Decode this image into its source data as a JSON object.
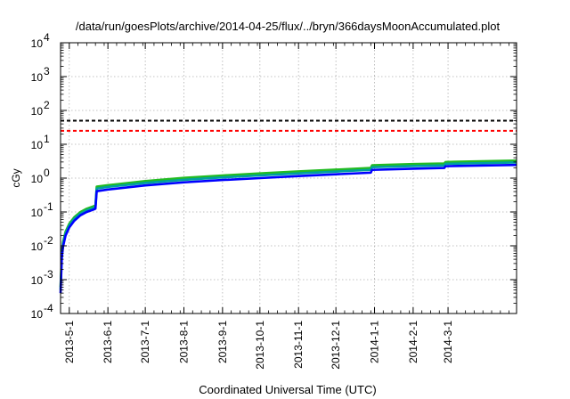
{
  "chart_data": {
    "type": "line",
    "title": "/data/run/goesPlots/archive/2014-04-25/flux/../bryn/366daysMoonAccumulated.plot",
    "xlabel": "Coordinated Universal Time (UTC)",
    "ylabel": "cGy",
    "x_range": [
      "2013-04-24",
      "2014-04-25"
    ],
    "ylim": [
      0.0001,
      10000
    ],
    "y_scale": "log",
    "grid": true,
    "x_ticks": [
      {
        "date": "2013-05-01",
        "label": "2013-5-1"
      },
      {
        "date": "2013-06-01",
        "label": "2013-6-1"
      },
      {
        "date": "2013-07-01",
        "label": "2013-7-1"
      },
      {
        "date": "2013-08-01",
        "label": "2013-8-1"
      },
      {
        "date": "2013-09-01",
        "label": "2013-9-1"
      },
      {
        "date": "2013-10-01",
        "label": "2013-10-1"
      },
      {
        "date": "2013-11-01",
        "label": "2013-11-1"
      },
      {
        "date": "2013-12-01",
        "label": "2013-12-1"
      },
      {
        "date": "2014-01-01",
        "label": "2014-1-1"
      },
      {
        "date": "2014-02-01",
        "label": "2014-2-1"
      },
      {
        "date": "2014-03-01",
        "label": "2014-3-1"
      }
    ],
    "y_ticks": [
      {
        "value": 0.0001,
        "base": "10",
        "exp": "-4"
      },
      {
        "value": 0.001,
        "base": "10",
        "exp": "-3"
      },
      {
        "value": 0.01,
        "base": "10",
        "exp": "-2"
      },
      {
        "value": 0.1,
        "base": "10",
        "exp": "-1"
      },
      {
        "value": 1,
        "base": "10",
        "exp": "0"
      },
      {
        "value": 10,
        "base": "10",
        "exp": "1"
      },
      {
        "value": 100,
        "base": "10",
        "exp": "2"
      },
      {
        "value": 1000,
        "base": "10",
        "exp": "3"
      },
      {
        "value": 10000,
        "base": "10",
        "exp": "4"
      }
    ],
    "threshold_lines": [
      {
        "value": 50,
        "color": "#000000",
        "style": "dashed"
      },
      {
        "value": 25,
        "color": "#ff0000",
        "style": "dashed"
      }
    ],
    "series": [
      {
        "color": "#22bb22",
        "points": [
          [
            "2013-04-24",
            0.0006
          ],
          [
            "2013-04-25",
            0.006
          ],
          [
            "2013-04-26",
            0.013
          ],
          [
            "2013-04-28",
            0.026
          ],
          [
            "2013-05-01",
            0.045
          ],
          [
            "2013-05-05",
            0.07
          ],
          [
            "2013-05-10",
            0.1
          ],
          [
            "2013-05-15",
            0.125
          ],
          [
            "2013-05-20",
            0.145
          ],
          [
            "2013-05-22",
            0.155
          ],
          [
            "2013-05-23",
            0.56
          ],
          [
            "2013-06-01",
            0.62
          ],
          [
            "2013-07-01",
            0.82
          ],
          [
            "2013-08-01",
            1.02
          ],
          [
            "2013-09-01",
            1.2
          ],
          [
            "2013-10-01",
            1.38
          ],
          [
            "2013-11-01",
            1.58
          ],
          [
            "2013-12-01",
            1.78
          ],
          [
            "2013-12-29",
            2.0
          ],
          [
            "2013-12-30",
            2.4
          ],
          [
            "2014-02-01",
            2.6
          ],
          [
            "2014-02-26",
            2.7
          ],
          [
            "2014-02-27",
            3.0
          ],
          [
            "2014-04-25",
            3.3
          ]
        ]
      },
      {
        "color": "#00a0a0",
        "points": [
          [
            "2013-04-24",
            0.0005
          ],
          [
            "2013-04-25",
            0.0052
          ],
          [
            "2013-04-26",
            0.011
          ],
          [
            "2013-04-28",
            0.023
          ],
          [
            "2013-05-01",
            0.04
          ],
          [
            "2013-05-05",
            0.063
          ],
          [
            "2013-05-10",
            0.09
          ],
          [
            "2013-05-15",
            0.112
          ],
          [
            "2013-05-20",
            0.13
          ],
          [
            "2013-05-22",
            0.14
          ],
          [
            "2013-05-23",
            0.49
          ],
          [
            "2013-06-01",
            0.55
          ],
          [
            "2013-07-01",
            0.72
          ],
          [
            "2013-08-01",
            0.89
          ],
          [
            "2013-09-01",
            1.05
          ],
          [
            "2013-10-01",
            1.2
          ],
          [
            "2013-11-01",
            1.38
          ],
          [
            "2013-12-01",
            1.56
          ],
          [
            "2013-12-29",
            1.75
          ],
          [
            "2013-12-30",
            2.1
          ],
          [
            "2014-02-01",
            2.28
          ],
          [
            "2014-02-26",
            2.38
          ],
          [
            "2014-02-27",
            2.65
          ],
          [
            "2014-04-25",
            2.9
          ]
        ]
      },
      {
        "color": "#0000ff",
        "points": [
          [
            "2013-04-24",
            0.0004
          ],
          [
            "2013-04-25",
            0.0045
          ],
          [
            "2013-04-26",
            0.0095
          ],
          [
            "2013-04-28",
            0.02
          ],
          [
            "2013-05-01",
            0.035
          ],
          [
            "2013-05-05",
            0.055
          ],
          [
            "2013-05-10",
            0.08
          ],
          [
            "2013-05-15",
            0.1
          ],
          [
            "2013-05-20",
            0.116
          ],
          [
            "2013-05-22",
            0.125
          ],
          [
            "2013-05-23",
            0.41
          ],
          [
            "2013-06-01",
            0.46
          ],
          [
            "2013-07-01",
            0.61
          ],
          [
            "2013-08-01",
            0.75
          ],
          [
            "2013-09-01",
            0.88
          ],
          [
            "2013-10-01",
            1.0
          ],
          [
            "2013-11-01",
            1.15
          ],
          [
            "2013-12-01",
            1.3
          ],
          [
            "2013-12-29",
            1.45
          ],
          [
            "2013-12-30",
            1.75
          ],
          [
            "2014-02-01",
            1.9
          ],
          [
            "2014-02-26",
            2.0
          ],
          [
            "2014-02-27",
            2.25
          ],
          [
            "2014-04-25",
            2.45
          ]
        ]
      }
    ]
  }
}
